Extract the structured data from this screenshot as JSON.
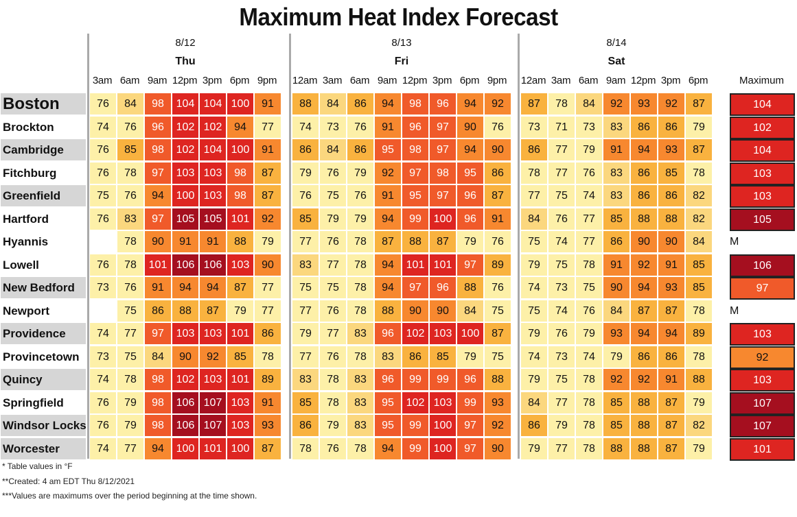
{
  "title": "Maximum Heat Index Forecast",
  "days": [
    {
      "date": "8/12",
      "name": "Thu",
      "hours": [
        "3am",
        "6am",
        "9am",
        "12pm",
        "3pm",
        "6pm",
        "9pm"
      ]
    },
    {
      "date": "8/13",
      "name": "Fri",
      "hours": [
        "12am",
        "3am",
        "6am",
        "9am",
        "12pm",
        "3pm",
        "6pm",
        "9pm"
      ]
    },
    {
      "date": "8/14",
      "name": "Sat",
      "hours": [
        "12am",
        "3am",
        "6am",
        "9am",
        "12pm",
        "3pm",
        "6pm"
      ]
    }
  ],
  "max_header": "Maximum",
  "footnotes": [
    "* Table values in °F",
    "**Created: 4 am EDT Thu 8/12/2021",
    "***Values are maximums over the period beginning at the time shown."
  ],
  "chart_data": {
    "type": "table",
    "title": "Maximum Heat Index Forecast",
    "units": "°F",
    "columns": [
      "3am",
      "6am",
      "9am",
      "12pm",
      "3pm",
      "6pm",
      "9pm",
      "12am",
      "3am",
      "6am",
      "9am",
      "12pm",
      "3pm",
      "6pm",
      "9pm",
      "12am",
      "3am",
      "6am",
      "9am",
      "12pm",
      "3pm",
      "6pm"
    ],
    "rows": [
      {
        "city": "Boston",
        "values": [
          76,
          84,
          98,
          104,
          104,
          100,
          91,
          88,
          84,
          86,
          94,
          98,
          96,
          94,
          92,
          87,
          78,
          84,
          92,
          93,
          92,
          87
        ],
        "max": "104"
      },
      {
        "city": "Brockton",
        "values": [
          74,
          76,
          96,
          102,
          102,
          94,
          77,
          74,
          73,
          76,
          91,
          96,
          97,
          90,
          76,
          73,
          71,
          73,
          83,
          86,
          86,
          79
        ],
        "max": "102"
      },
      {
        "city": "Cambridge",
        "values": [
          76,
          85,
          98,
          102,
          104,
          100,
          91,
          86,
          84,
          86,
          95,
          98,
          97,
          94,
          90,
          86,
          77,
          79,
          91,
          94,
          93,
          87
        ],
        "max": "104"
      },
      {
        "city": "Fitchburg",
        "values": [
          76,
          78,
          97,
          103,
          103,
          98,
          87,
          79,
          76,
          79,
          92,
          97,
          98,
          95,
          86,
          78,
          77,
          76,
          83,
          86,
          85,
          78
        ],
        "max": "103"
      },
      {
        "city": "Greenfield",
        "values": [
          75,
          76,
          94,
          100,
          103,
          98,
          87,
          76,
          75,
          76,
          91,
          95,
          97,
          96,
          87,
          77,
          75,
          74,
          83,
          86,
          86,
          82
        ],
        "max": "103"
      },
      {
        "city": "Hartford",
        "values": [
          76,
          83,
          97,
          105,
          105,
          101,
          92,
          85,
          79,
          79,
          94,
          99,
          100,
          96,
          91,
          84,
          76,
          77,
          85,
          88,
          88,
          82
        ],
        "max": "105"
      },
      {
        "city": "Hyannis",
        "values": [
          null,
          78,
          90,
          91,
          91,
          88,
          79,
          77,
          76,
          78,
          87,
          88,
          87,
          79,
          76,
          75,
          74,
          77,
          86,
          90,
          90,
          84
        ],
        "max": "M"
      },
      {
        "city": "Lowell",
        "values": [
          76,
          78,
          101,
          106,
          106,
          103,
          90,
          83,
          77,
          78,
          94,
          101,
          101,
          97,
          89,
          79,
          75,
          78,
          91,
          92,
          91,
          85
        ],
        "max": "106"
      },
      {
        "city": "New Bedford",
        "values": [
          73,
          76,
          91,
          94,
          94,
          87,
          77,
          75,
          75,
          78,
          94,
          97,
          96,
          88,
          76,
          74,
          73,
          75,
          90,
          94,
          93,
          85
        ],
        "max": "97"
      },
      {
        "city": "Newport",
        "values": [
          null,
          75,
          86,
          88,
          87,
          79,
          77,
          77,
          76,
          78,
          88,
          90,
          90,
          84,
          75,
          75,
          74,
          76,
          84,
          87,
          87,
          78
        ],
        "max": "M"
      },
      {
        "city": "Providence",
        "values": [
          74,
          77,
          97,
          103,
          103,
          101,
          86,
          79,
          77,
          83,
          96,
          102,
          103,
          100,
          87,
          79,
          76,
          79,
          93,
          94,
          94,
          89
        ],
        "max": "103"
      },
      {
        "city": "Provincetown",
        "values": [
          73,
          75,
          84,
          90,
          92,
          85,
          78,
          77,
          76,
          78,
          83,
          86,
          85,
          79,
          75,
          74,
          73,
          74,
          79,
          86,
          86,
          78
        ],
        "max": "92"
      },
      {
        "city": "Quincy",
        "values": [
          74,
          78,
          98,
          102,
          103,
          101,
          89,
          83,
          78,
          83,
          96,
          99,
          99,
          96,
          88,
          79,
          75,
          78,
          92,
          92,
          91,
          88
        ],
        "max": "103"
      },
      {
        "city": "Springfield",
        "values": [
          76,
          79,
          98,
          106,
          107,
          103,
          91,
          85,
          78,
          83,
          95,
          102,
          103,
          99,
          93,
          84,
          77,
          78,
          85,
          88,
          87,
          79
        ],
        "max": "107"
      },
      {
        "city": "Windsor Locks",
        "values": [
          76,
          79,
          98,
          106,
          107,
          103,
          93,
          86,
          79,
          83,
          95,
          99,
          100,
          97,
          92,
          86,
          79,
          78,
          85,
          88,
          87,
          82
        ],
        "max": "107"
      },
      {
        "city": "Worcester",
        "values": [
          74,
          77,
          94,
          100,
          101,
          100,
          87,
          78,
          76,
          78,
          94,
          99,
          100,
          97,
          90,
          79,
          77,
          78,
          88,
          88,
          87,
          79
        ],
        "max": "101"
      }
    ]
  },
  "colors": {
    "lt80": "#fdf0a8",
    "c80_84": "#fbd77e",
    "c85_89": "#f9b23f",
    "c90_94": "#f7882f",
    "c95_99": "#f05a2a",
    "c100_104": "#de2521",
    "c105_plus": "#a50f1f",
    "city_shade": "#d6d6d6"
  }
}
